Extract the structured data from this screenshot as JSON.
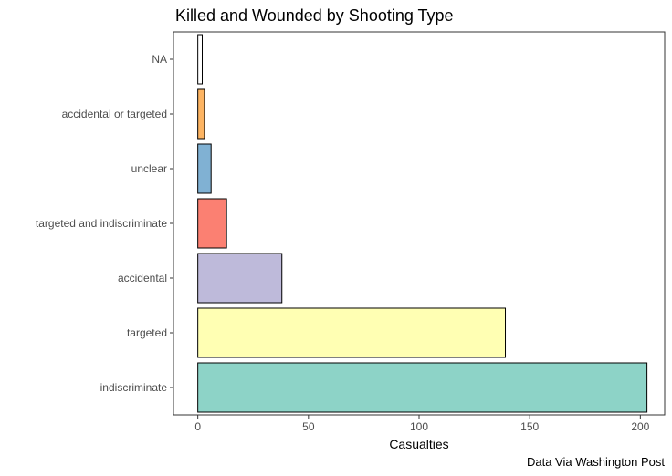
{
  "chart_data": {
    "type": "bar",
    "orientation": "horizontal",
    "title": "Killed and Wounded by Shooting Type",
    "xlabel": "Casualties",
    "ylabel": "",
    "caption": "Data Via Washington Post",
    "xlim": [
      -11,
      211
    ],
    "xticks": [
      0,
      50,
      100,
      150,
      200
    ],
    "grid": false,
    "legend": "none",
    "categories": [
      "indiscriminate",
      "targeted",
      "accidental",
      "targeted and indiscriminate",
      "unclear",
      "accidental or targeted",
      "NA"
    ],
    "values": [
      203,
      139,
      38,
      13,
      6,
      3,
      2
    ],
    "colors": [
      "#8dd3c7",
      "#ffffb3",
      "#bebada",
      "#fb8072",
      "#80b1d3",
      "#fdb462",
      "#ffffff"
    ],
    "bar_outline": "#000000"
  }
}
